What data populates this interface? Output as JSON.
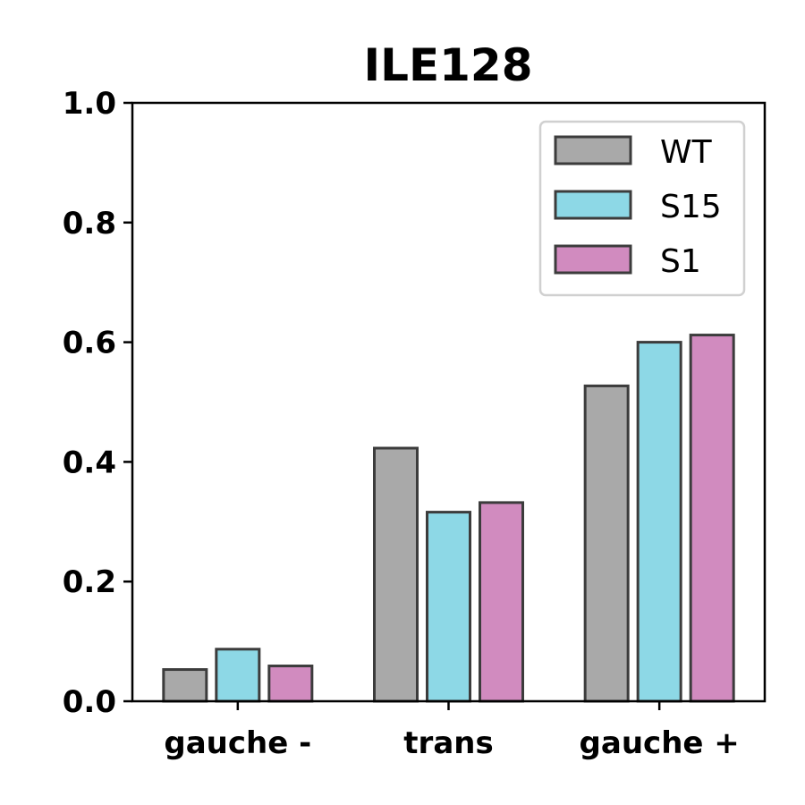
{
  "chart_data": {
    "type": "bar",
    "title": "ILE128",
    "xlabel": "",
    "ylabel": "",
    "categories": [
      "gauche -",
      "trans",
      "gauche +"
    ],
    "series": [
      {
        "name": "WT",
        "color": "#a9a9a9",
        "values": [
          0.053,
          0.423,
          0.527
        ]
      },
      {
        "name": "S15",
        "color": "#8dd8e6",
        "values": [
          0.087,
          0.316,
          0.6
        ]
      },
      {
        "name": "S1",
        "color": "#d18bbf",
        "values": [
          0.059,
          0.332,
          0.612
        ]
      }
    ],
    "ylim": [
      0,
      1.0
    ],
    "yticks": [
      "0.0",
      "0.2",
      "0.4",
      "0.6",
      "0.8",
      "1.0"
    ],
    "legend": "top-right",
    "grid": false
  }
}
